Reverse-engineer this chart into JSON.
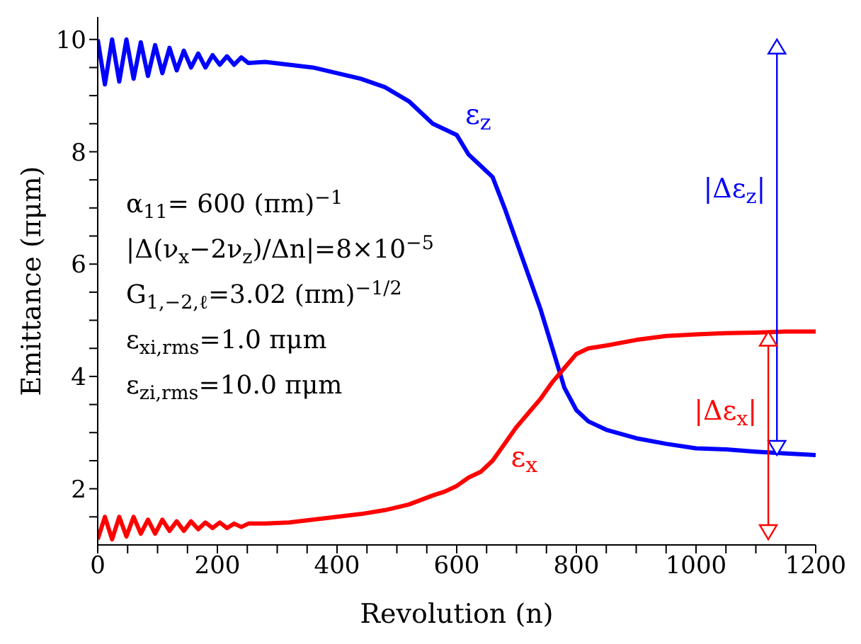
{
  "chart_data": {
    "type": "line",
    "xlabel": "Revolution (n)",
    "ylabel": "Emittance (πμm)",
    "xlim": [
      0,
      1200
    ],
    "ylim": [
      1,
      10.4
    ],
    "xticks": [
      0,
      {
        "value": 50,
        "label": null
      },
      {
        "value": 100,
        "label": null
      },
      {
        "value": 150,
        "label": null
      },
      200,
      {
        "value": 250,
        "label": null
      },
      {
        "value": 300,
        "label": null
      },
      {
        "value": 350,
        "label": null
      },
      400,
      {
        "value": 450,
        "label": null
      },
      {
        "value": 500,
        "label": null
      },
      {
        "value": 550,
        "label": null
      },
      600,
      {
        "value": 650,
        "label": null
      },
      {
        "value": 700,
        "label": null
      },
      {
        "value": 750,
        "label": null
      },
      800,
      {
        "value": 850,
        "label": null
      },
      {
        "value": 900,
        "label": null
      },
      {
        "value": 950,
        "label": null
      },
      1000,
      {
        "value": 1050,
        "label": null
      },
      {
        "value": 1100,
        "label": null
      },
      {
        "value": 1150,
        "label": null
      },
      1200
    ],
    "yticks": [
      {
        "value": 1.5,
        "label": null
      },
      2,
      {
        "value": 2.5,
        "label": null
      },
      {
        "value": 3,
        "label": null
      },
      {
        "value": 3.5,
        "label": null
      },
      4,
      {
        "value": 4.5,
        "label": null
      },
      {
        "value": 5,
        "label": null
      },
      {
        "value": 5.5,
        "label": null
      },
      6,
      {
        "value": 6.5,
        "label": null
      },
      {
        "value": 7,
        "label": null
      },
      {
        "value": 7.5,
        "label": null
      },
      8,
      {
        "value": 8.5,
        "label": null
      },
      {
        "value": 9,
        "label": null
      },
      {
        "value": 9.5,
        "label": null
      },
      10
    ],
    "x": [
      0,
      12,
      24,
      36,
      48,
      60,
      72,
      84,
      96,
      108,
      120,
      132,
      144,
      156,
      168,
      180,
      192,
      204,
      216,
      228,
      240,
      252,
      280,
      320,
      360,
      400,
      440,
      480,
      520,
      560,
      580,
      600,
      620,
      640,
      660,
      680,
      700,
      720,
      740,
      760,
      780,
      800,
      820,
      850,
      900,
      950,
      1000,
      1050,
      1100,
      1150,
      1200
    ],
    "series": [
      {
        "name": "ε$_{z}$",
        "color": "#0000ff",
        "values": [
          10.0,
          9.2,
          10.0,
          9.25,
          10.0,
          9.3,
          9.95,
          9.35,
          9.9,
          9.4,
          9.85,
          9.45,
          9.8,
          9.5,
          9.75,
          9.5,
          9.72,
          9.55,
          9.7,
          9.55,
          9.68,
          9.58,
          9.6,
          9.55,
          9.5,
          9.4,
          9.3,
          9.15,
          8.9,
          8.5,
          8.4,
          8.3,
          7.95,
          7.75,
          7.55,
          7.0,
          6.4,
          5.8,
          5.2,
          4.5,
          3.8,
          3.4,
          3.2,
          3.05,
          2.9,
          2.8,
          2.72,
          2.7,
          2.66,
          2.63,
          2.6
        ]
      },
      {
        "name": "ε$_{x}$",
        "color": "#ff0000",
        "values": [
          1.1,
          1.5,
          1.1,
          1.5,
          1.15,
          1.5,
          1.2,
          1.45,
          1.2,
          1.45,
          1.25,
          1.42,
          1.25,
          1.42,
          1.28,
          1.4,
          1.3,
          1.4,
          1.3,
          1.38,
          1.32,
          1.38,
          1.38,
          1.4,
          1.45,
          1.5,
          1.55,
          1.62,
          1.72,
          1.88,
          1.95,
          2.05,
          2.2,
          2.3,
          2.5,
          2.8,
          3.1,
          3.35,
          3.6,
          3.9,
          4.15,
          4.4,
          4.5,
          4.55,
          4.65,
          4.72,
          4.75,
          4.77,
          4.78,
          4.8,
          4.8
        ]
      }
    ],
    "marker": "none",
    "line_style": "solid",
    "annotations": [
      "α$_{11}$= 600 (πm)$^{−1}$",
      "|Δ(ν$_{x}$−2ν$_{z}$)/Δn|=8×10$^{−5}$",
      "G$_{1,−2,ℓ}$=3.02 (πm)$^{−1/2}$",
      "ε$_{xi,rms}$=1.0 πμm",
      "ε$_{zi,rms}$=10.0 πμm",
      "|Δε$_{z}$|",
      "|Δε$_{x}$|"
    ]
  }
}
